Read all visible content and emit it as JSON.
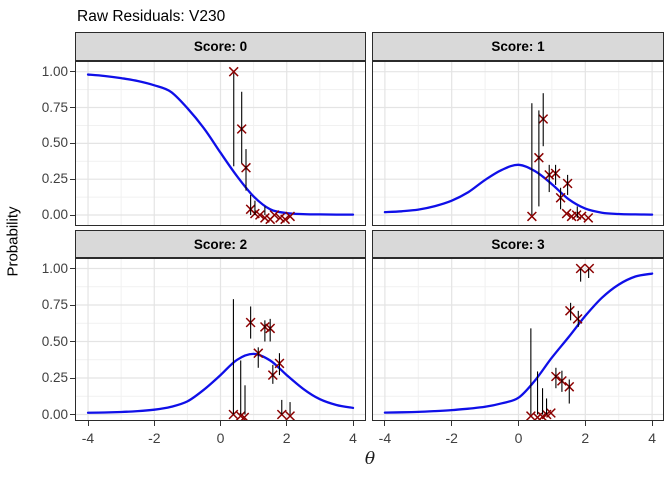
{
  "title": "Raw Residuals: V230",
  "style": {
    "curve_color": "#0f0fe8",
    "point_color": "#8b0000",
    "segment_color": "#000000",
    "strip_fill": "#d9d9d9",
    "panel_border": "#2b2b2b",
    "grid_major": "#e4e4e4",
    "grid_minor": "#f1f1f1",
    "axis_text_color": "#404040"
  },
  "chart_data": {
    "type": "line",
    "title": "Raw Residuals: V230",
    "xlabel": "θ",
    "ylabel": "Probability",
    "legend": "none",
    "grid": "on",
    "xlim": [
      -4.4,
      4.4
    ],
    "ylim": [
      -0.075,
      1.075
    ],
    "x_ticks": [
      -4,
      -2,
      0,
      2,
      4
    ],
    "x_tick_labels": [
      "-4",
      "-2",
      "0",
      "2",
      "4"
    ],
    "x_minor": [
      -3,
      -1,
      1,
      3
    ],
    "y_ticks": [
      0,
      0.25,
      0.5,
      0.75,
      1.0
    ],
    "y_tick_labels": [
      "0.00",
      "0.25",
      "0.50",
      "0.75",
      "1.00"
    ],
    "y_minor": [
      0.125,
      0.375,
      0.625,
      0.875
    ],
    "curve_theta": [
      -4,
      -3.5,
      -3,
      -2.5,
      -2,
      -1.5,
      -1,
      -0.5,
      0,
      0.5,
      1,
      1.5,
      2,
      2.5,
      3,
      3.5,
      4
    ],
    "facets": [
      {
        "label": "Score: 0",
        "curve_prob": [
          0.98,
          0.97,
          0.955,
          0.935,
          0.905,
          0.86,
          0.745,
          0.605,
          0.435,
          0.27,
          0.13,
          0.04,
          0.013,
          0.006,
          0.004,
          0.003,
          0.003
        ],
        "points": [
          [
            0.4,
            1.0
          ],
          [
            0.64,
            0.6
          ],
          [
            0.77,
            0.33
          ],
          [
            0.91,
            0.04
          ],
          [
            1.04,
            0.01
          ],
          [
            1.19,
            0.0
          ],
          [
            1.34,
            -0.02
          ],
          [
            1.5,
            -0.03
          ],
          [
            1.63,
            0.0
          ],
          [
            1.8,
            -0.02
          ],
          [
            1.95,
            -0.03
          ],
          [
            2.1,
            -0.01
          ]
        ],
        "segments": [
          [
            0.4,
            0.34,
            0.99
          ],
          [
            0.64,
            0.36,
            0.86
          ],
          [
            0.77,
            0.17,
            0.46
          ],
          [
            0.91,
            0.0,
            0.14
          ],
          [
            1.04,
            0.0,
            0.1
          ],
          [
            1.34,
            0.0,
            0.06
          ]
        ]
      },
      {
        "label": "Score: 1",
        "curve_prob": [
          0.02,
          0.026,
          0.038,
          0.062,
          0.1,
          0.16,
          0.245,
          0.315,
          0.35,
          0.305,
          0.215,
          0.11,
          0.045,
          0.016,
          0.007,
          0.004,
          0.003
        ],
        "points": [
          [
            0.4,
            -0.01
          ],
          [
            0.61,
            0.4
          ],
          [
            0.74,
            0.67
          ],
          [
            0.92,
            0.28
          ],
          [
            1.11,
            0.29
          ],
          [
            1.26,
            0.12
          ],
          [
            1.44,
            0.01
          ],
          [
            1.47,
            0.22
          ],
          [
            1.59,
            -0.01
          ],
          [
            1.74,
            0.0
          ],
          [
            1.89,
            -0.01
          ],
          [
            2.09,
            -0.02
          ]
        ],
        "segments": [
          [
            0.4,
            0.0,
            0.78
          ],
          [
            0.61,
            0.06,
            0.73
          ],
          [
            0.74,
            0.48,
            0.85
          ],
          [
            0.92,
            0.16,
            0.35
          ],
          [
            1.11,
            0.21,
            0.35
          ],
          [
            1.26,
            0.04,
            0.19
          ],
          [
            1.47,
            0.14,
            0.28
          ],
          [
            1.76,
            -0.02,
            0.06
          ]
        ]
      },
      {
        "label": "Score: 2",
        "curve_prob": [
          0.012,
          0.014,
          0.017,
          0.023,
          0.033,
          0.052,
          0.09,
          0.17,
          0.27,
          0.375,
          0.415,
          0.37,
          0.27,
          0.175,
          0.105,
          0.065,
          0.045
        ],
        "points": [
          [
            0.39,
            0.0
          ],
          [
            0.61,
            -0.01
          ],
          [
            0.72,
            -0.02
          ],
          [
            0.91,
            0.63
          ],
          [
            1.14,
            0.42
          ],
          [
            1.34,
            0.6
          ],
          [
            1.5,
            0.59
          ],
          [
            1.58,
            0.27
          ],
          [
            1.78,
            0.35
          ],
          [
            1.85,
            0.0
          ],
          [
            2.1,
            -0.01
          ]
        ],
        "segments": [
          [
            0.39,
            0.0,
            0.79
          ],
          [
            0.61,
            0.0,
            0.37
          ],
          [
            0.74,
            0.0,
            0.2
          ],
          [
            0.91,
            0.52,
            0.74
          ],
          [
            1.14,
            0.32,
            0.46
          ],
          [
            1.34,
            0.5,
            0.645
          ],
          [
            1.5,
            0.5,
            0.655
          ],
          [
            1.58,
            0.21,
            0.34
          ],
          [
            1.78,
            0.27,
            0.42
          ],
          [
            1.85,
            0.0,
            0.1
          ],
          [
            2.1,
            0.0,
            0.085
          ]
        ]
      },
      {
        "label": "Score: 3",
        "curve_prob": [
          0.013,
          0.015,
          0.018,
          0.023,
          0.03,
          0.04,
          0.053,
          0.077,
          0.115,
          0.235,
          0.39,
          0.53,
          0.675,
          0.8,
          0.89,
          0.945,
          0.965
        ],
        "points": [
          [
            0.37,
            -0.01
          ],
          [
            0.57,
            -0.02
          ],
          [
            0.72,
            -0.015
          ],
          [
            0.84,
            0.0
          ],
          [
            0.97,
            0.01
          ],
          [
            1.12,
            0.26
          ],
          [
            1.3,
            0.23
          ],
          [
            1.52,
            0.19
          ],
          [
            1.54,
            0.71
          ],
          [
            1.77,
            0.655
          ],
          [
            1.86,
            1.0
          ],
          [
            2.12,
            1.0
          ]
        ],
        "segments": [
          [
            0.37,
            0.0,
            0.59
          ],
          [
            0.57,
            0.0,
            0.295
          ],
          [
            0.72,
            0.0,
            0.18
          ],
          [
            0.84,
            0.0,
            0.11
          ],
          [
            1.12,
            0.18,
            0.32
          ],
          [
            1.3,
            0.155,
            0.3
          ],
          [
            1.52,
            0.075,
            0.24
          ],
          [
            1.56,
            0.645,
            0.765
          ],
          [
            1.79,
            0.6,
            0.71
          ],
          [
            1.86,
            0.91,
            1.0
          ],
          [
            2.1,
            0.935,
            1.0
          ]
        ]
      }
    ]
  }
}
